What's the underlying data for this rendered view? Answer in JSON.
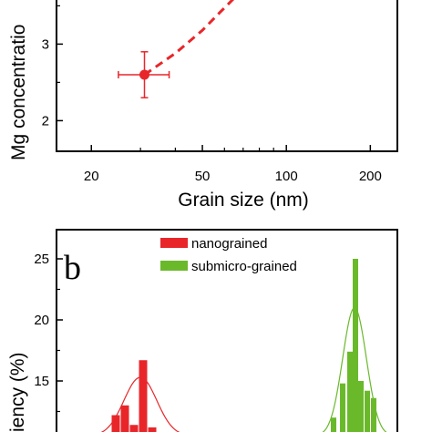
{
  "chart_data": [
    {
      "type": "scatter",
      "ylabel": "Mg concentratio",
      "xlabel": "Grain size (nm)",
      "x_scale": "log",
      "x_ticks": [
        20,
        50,
        100,
        200
      ],
      "x_tick_labels": [
        "20",
        "50",
        "100",
        "200"
      ],
      "y_ticks": [
        2,
        3
      ],
      "y_tick_labels": [
        "2",
        "3"
      ],
      "xlim": [
        15,
        250
      ],
      "ylim": [
        1.6,
        3.6
      ],
      "points": [
        {
          "x": 31,
          "y": 2.6,
          "x_err": [
            25,
            38
          ],
          "y_err": [
            2.3,
            2.9
          ]
        }
      ],
      "trend_line": {
        "x": [
          31,
          40,
          50,
          58,
          65
        ],
        "y": [
          2.6,
          2.88,
          3.18,
          3.42,
          3.6
        ]
      },
      "colors": {
        "series": "#e8262a",
        "axes": "#000000"
      }
    },
    {
      "type": "bar",
      "panel_label": "b",
      "ylabel": "iency (%)",
      "y_ticks": [
        15,
        20,
        25
      ],
      "y_tick_labels": [
        "15",
        "20",
        "25"
      ],
      "ylim": [
        10.5,
        27.5
      ],
      "legend": {
        "placement": "top-center",
        "entries": [
          "nanograined",
          "submicro-grained"
        ]
      },
      "series": [
        {
          "name": "nanograined",
          "color": "#e8262a",
          "bins": [
            {
              "x": 127,
              "value": 12.2
            },
            {
              "x": 137,
              "value": 13.0
            },
            {
              "x": 147,
              "value": 11.4
            },
            {
              "x": 157,
              "value": 16.7
            },
            {
              "x": 167,
              "value": 11.2
            }
          ],
          "fit_curve": {
            "center": 154,
            "peak": 15.3,
            "width": 18
          }
        },
        {
          "name": "submicro-grained",
          "color": "#6ab92b",
          "bins": [
            {
              "x": 366,
              "value": 12.0
            },
            {
              "x": 376,
              "value": 14.8
            },
            {
              "x": 384,
              "value": 17.4
            },
            {
              "x": 390,
              "value": 25.0
            },
            {
              "x": 396,
              "value": 15.0
            },
            {
              "x": 403,
              "value": 14.2
            },
            {
              "x": 410,
              "value": 13.6
            }
          ],
          "fit_curve": {
            "center": 389,
            "peak": 21.0,
            "width": 13
          }
        }
      ]
    }
  ]
}
